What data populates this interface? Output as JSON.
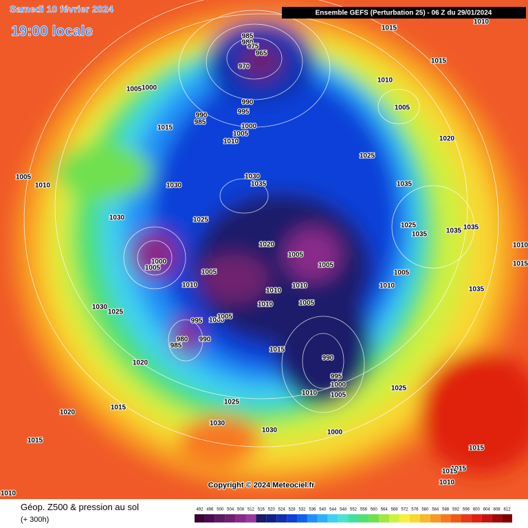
{
  "header": {
    "date": "Samedi 10 février 2024",
    "time": "19:00 locale",
    "model_info": "Ensemble GEFS  (Perturbation 25)  -  06 Z du 29/01/2024"
  },
  "footer": {
    "field": "Géop. Z500 & pression au sol",
    "lead": "(+ 300h)",
    "copyright": "Copyright © 2024 Meteociel.fr"
  },
  "scale": {
    "labels": [
      492,
      496,
      500,
      504,
      508,
      512,
      516,
      520,
      524,
      528,
      532,
      536,
      540,
      544,
      548,
      552,
      556,
      560,
      564,
      568,
      572,
      576,
      580,
      584,
      588,
      592,
      596,
      600,
      604,
      608,
      612
    ],
    "colors": [
      "#3a0030",
      "#4b0b50",
      "#5a1a60",
      "#702070",
      "#8a2a8a",
      "#9a3aa0",
      "#1a1a6a",
      "#10208a",
      "#1030b0",
      "#1040d8",
      "#1060f0",
      "#2090f8",
      "#30b0f8",
      "#40d0f0",
      "#50e0d0",
      "#40e0a0",
      "#50e070",
      "#70e050",
      "#a0e840",
      "#d0f040",
      "#f8f040",
      "#f8d830",
      "#f8b828",
      "#f89820",
      "#f87820",
      "#f05818",
      "#e83818",
      "#e02010",
      "#c81010",
      "#a00808",
      "#800000"
    ]
  },
  "pressure_labels": [
    985,
    980,
    975,
    965,
    970,
    1015,
    1010,
    1015,
    1005,
    1000,
    990,
    985,
    995,
    990,
    1010,
    1005,
    1015,
    1000,
    1005,
    1010,
    1020,
    1025,
    1005,
    1010,
    1030,
    1030,
    1035,
    1035,
    1030,
    1025,
    1025,
    1035,
    1035,
    1035,
    1020,
    1005,
    1005,
    1000,
    1005,
    1005,
    1010,
    1005,
    1035,
    1010,
    1010,
    1010,
    1010,
    1005,
    1030,
    1025,
    995,
    1000,
    1005,
    980,
    985,
    990,
    1015,
    990,
    995,
    1000,
    1005,
    1010,
    1025,
    1020,
    1025,
    1015,
    1020,
    1030,
    1030,
    1000,
    1015,
    1015,
    1015,
    1015,
    1010,
    1010,
    1010,
    1015
  ]
}
